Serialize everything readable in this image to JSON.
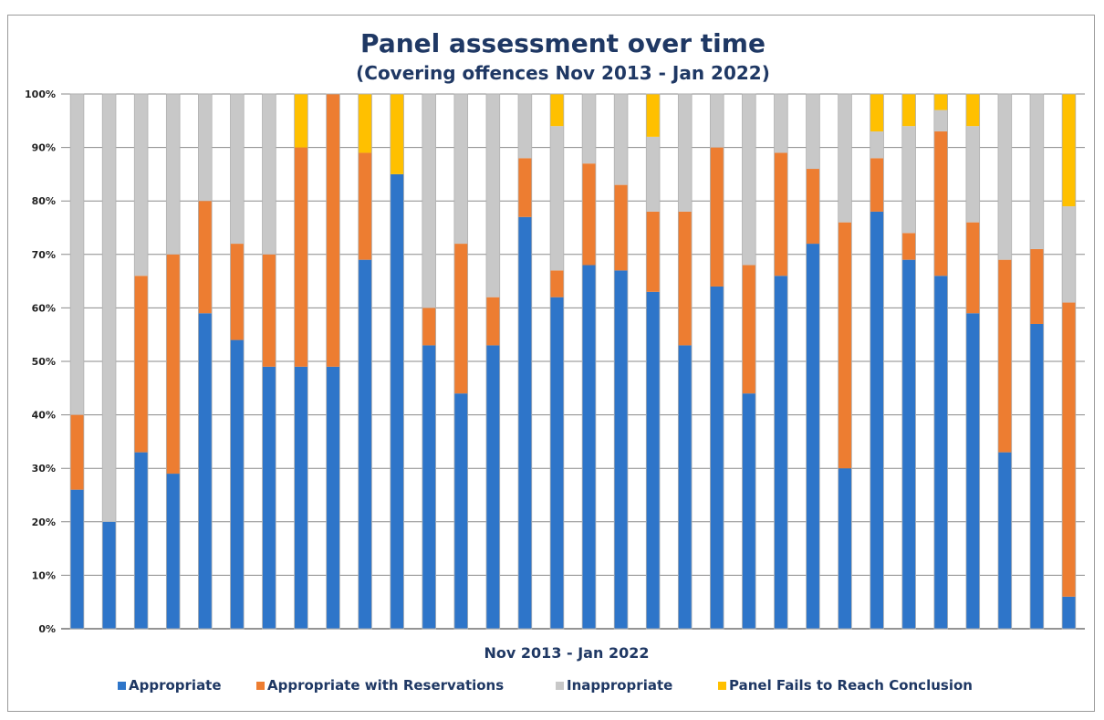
{
  "chart_data": {
    "type": "bar",
    "stacked": true,
    "percent": true,
    "title": "Panel assessment over time",
    "subtitle": "(Covering offences Nov 2013 - Jan 2022)",
    "xlabel": "Nov 2013 - Jan 2022",
    "ylabel": "",
    "ylim": [
      0,
      100
    ],
    "yticks": [
      "0%",
      "10%",
      "20%",
      "30%",
      "40%",
      "50%",
      "60%",
      "70%",
      "80%",
      "90%",
      "100%"
    ],
    "grid": true,
    "legend_position": "bottom",
    "bar_count": 32,
    "series": [
      {
        "name": "Appropriate",
        "color": "#2e75c9",
        "values": [
          26,
          20,
          33,
          29,
          59,
          54,
          49,
          49,
          49,
          69,
          85,
          53,
          44,
          53,
          77,
          62,
          68,
          67,
          63,
          53,
          64,
          44,
          66,
          72,
          30,
          78,
          69,
          66,
          59,
          33,
          57,
          6
        ]
      },
      {
        "name": "Appropriate with Reservations",
        "color": "#ed7d31",
        "values": [
          14,
          0,
          33,
          41,
          21,
          18,
          21,
          41,
          51,
          20,
          0,
          7,
          28,
          9,
          11,
          5,
          19,
          16,
          15,
          25,
          26,
          24,
          23,
          14,
          46,
          10,
          5,
          27,
          17,
          36,
          14,
          55
        ]
      },
      {
        "name": "Inappropriate",
        "color": "#c8c8c8",
        "values": [
          60,
          80,
          34,
          30,
          20,
          28,
          30,
          0,
          0,
          0,
          0,
          40,
          28,
          38,
          12,
          27,
          13,
          17,
          14,
          22,
          10,
          32,
          11,
          14,
          24,
          5,
          20,
          4,
          18,
          31,
          29,
          18
        ]
      },
      {
        "name": "Panel Fails to Reach Conclusion",
        "color": "#ffc000",
        "values": [
          0,
          0,
          0,
          0,
          0,
          0,
          0,
          10,
          0,
          11,
          15,
          0,
          0,
          0,
          0,
          6,
          0,
          0,
          8,
          0,
          0,
          0,
          0,
          0,
          0,
          7,
          6,
          3,
          6,
          0,
          0,
          21
        ]
      }
    ]
  }
}
